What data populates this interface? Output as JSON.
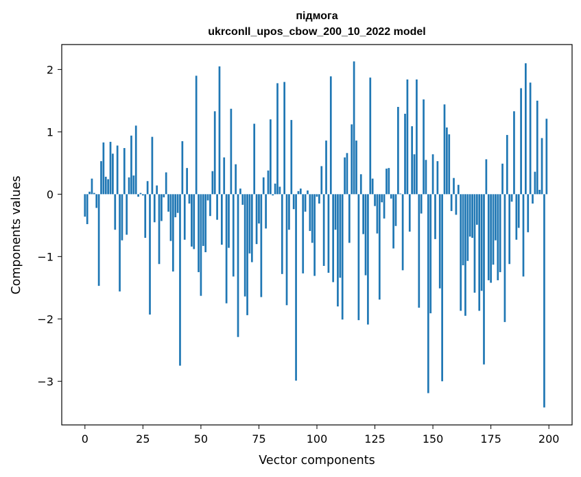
{
  "chart_data": {
    "type": "bar",
    "title": [
      "підмога",
      "ukrconll_upos_cbow_200_10_2022 model"
    ],
    "xlabel": "Vector components",
    "ylabel": "Components values",
    "xlim": [
      -10,
      210
    ],
    "ylim": [
      -3.7,
      2.4
    ],
    "xticks": [
      0,
      25,
      50,
      75,
      100,
      125,
      150,
      175,
      200
    ],
    "yticks": [
      -3,
      -2,
      -1,
      0,
      1,
      2
    ],
    "grid": false,
    "bar_color": "#1f77b4",
    "x": [
      0,
      1,
      2,
      3,
      4,
      5,
      6,
      7,
      8,
      9,
      10,
      11,
      12,
      13,
      14,
      15,
      16,
      17,
      18,
      19,
      20,
      21,
      22,
      23,
      24,
      25,
      26,
      27,
      28,
      29,
      30,
      31,
      32,
      33,
      34,
      35,
      36,
      37,
      38,
      39,
      40,
      41,
      42,
      43,
      44,
      45,
      46,
      47,
      48,
      49,
      50,
      51,
      52,
      53,
      54,
      55,
      56,
      57,
      58,
      59,
      60,
      61,
      62,
      63,
      64,
      65,
      66,
      67,
      68,
      69,
      70,
      71,
      72,
      73,
      74,
      75,
      76,
      77,
      78,
      79,
      80,
      81,
      82,
      83,
      84,
      85,
      86,
      87,
      88,
      89,
      90,
      91,
      92,
      93,
      94,
      95,
      96,
      97,
      98,
      99,
      100,
      101,
      102,
      103,
      104,
      105,
      106,
      107,
      108,
      109,
      110,
      111,
      112,
      113,
      114,
      115,
      116,
      117,
      118,
      119,
      120,
      121,
      122,
      123,
      124,
      125,
      126,
      127,
      128,
      129,
      130,
      131,
      132,
      133,
      134,
      135,
      136,
      137,
      138,
      139,
      140,
      141,
      142,
      143,
      144,
      145,
      146,
      147,
      148,
      149,
      150,
      151,
      152,
      153,
      154,
      155,
      156,
      157,
      158,
      159,
      160,
      161,
      162,
      163,
      164,
      165,
      166,
      167,
      168,
      169,
      170,
      171,
      172,
      173,
      174,
      175,
      176,
      177,
      178,
      179,
      180,
      181,
      182,
      183,
      184,
      185,
      186,
      187,
      188,
      189,
      190,
      191,
      192,
      193,
      194,
      195,
      196,
      197,
      198,
      199
    ],
    "values": [
      -0.36,
      -0.48,
      0.04,
      0.25,
      0.02,
      -0.22,
      -1.47,
      0.53,
      0.83,
      0.28,
      0.24,
      0.84,
      0.65,
      -0.57,
      0.78,
      -1.56,
      -0.74,
      0.74,
      -0.65,
      0.27,
      0.94,
      0.3,
      1.1,
      -0.04,
      0.02,
      -0.02,
      -0.7,
      0.21,
      -1.93,
      0.92,
      -0.45,
      0.14,
      -1.12,
      -0.43,
      -0.05,
      0.35,
      -0.28,
      -0.75,
      -1.24,
      -0.37,
      -0.3,
      -2.75,
      0.85,
      -0.73,
      0.42,
      -0.15,
      -0.84,
      -0.88,
      1.9,
      -1.25,
      -1.63,
      -0.83,
      -0.93,
      -0.1,
      -0.35,
      0.37,
      1.33,
      -0.41,
      2.05,
      -0.81,
      0.59,
      -1.75,
      -0.86,
      1.37,
      -1.32,
      0.48,
      -2.29,
      0.09,
      -0.17,
      -1.64,
      -1.94,
      -0.95,
      -1.09,
      1.13,
      -0.8,
      -0.47,
      -1.65,
      0.27,
      -0.55,
      0.38,
      1.2,
      -0.02,
      0.17,
      1.78,
      0.12,
      -1.28,
      1.8,
      -1.78,
      -0.57,
      1.19,
      -0.24,
      -2.99,
      0.05,
      0.09,
      -1.27,
      -0.28,
      0.06,
      -0.59,
      -0.78,
      -1.31,
      -0.04,
      -0.15,
      0.45,
      -1.15,
      0.86,
      -1.26,
      1.89,
      -1.41,
      -0.57,
      -1.8,
      -1.34,
      -2.01,
      0.59,
      0.66,
      -0.78,
      1.12,
      2.13,
      0.86,
      -2.02,
      0.32,
      -0.64,
      -1.3,
      -2.09,
      1.87,
      0.25,
      -0.19,
      -0.63,
      -1.69,
      -0.13,
      -0.39,
      0.41,
      0.42,
      -0.07,
      -0.87,
      -0.51,
      1.4,
      0.01,
      -1.22,
      1.29,
      1.84,
      -0.6,
      1.09,
      0.64,
      1.84,
      -1.82,
      -0.31,
      1.52,
      0.55,
      -3.19,
      -1.91,
      0.64,
      -0.72,
      0.53,
      -1.51,
      -3.0,
      1.44,
      1.07,
      0.96,
      -0.27,
      0.26,
      -0.33,
      0.15,
      -1.87,
      -1.14,
      -1.95,
      -1.07,
      -0.68,
      -0.7,
      -1.58,
      -0.49,
      -1.87,
      -1.55,
      -2.73,
      0.56,
      -1.38,
      -1.42,
      -1.13,
      -0.74,
      -1.38,
      -1.25,
      0.49,
      -2.05,
      0.95,
      -1.12,
      -0.12,
      1.33,
      -0.73,
      -0.54,
      1.7,
      -1.32,
      2.1,
      -0.61,
      1.79,
      -0.15,
      0.36,
      1.5,
      0.07,
      0.9,
      -3.42,
      1.21
    ]
  }
}
